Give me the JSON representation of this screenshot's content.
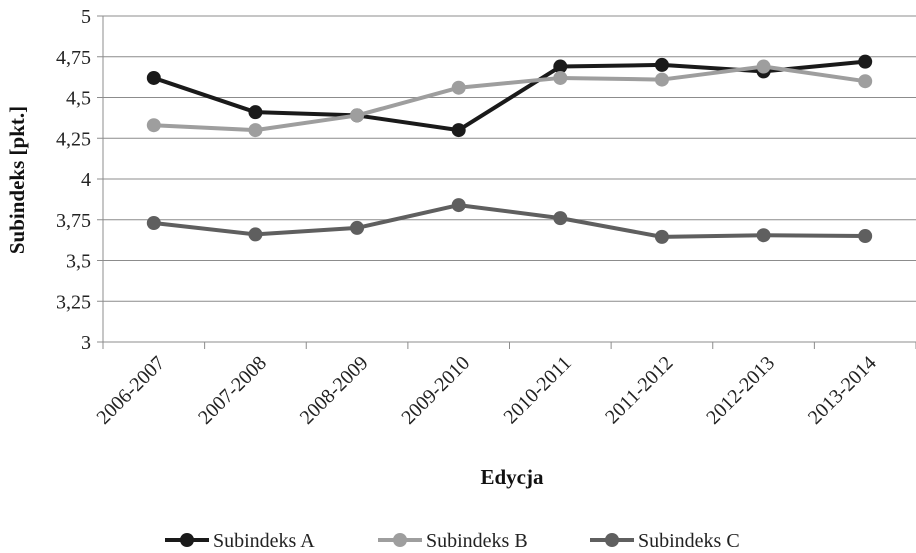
{
  "chart_data": {
    "type": "line",
    "title": "",
    "xlabel": "Edycja",
    "ylabel": "Subindeks [pkt.]",
    "categories": [
      "2006-2007",
      "2007-2008",
      "2008-2009",
      "2009-2010",
      "2010-2011",
      "2011-2012",
      "2012-2013",
      "2013-2014"
    ],
    "ylim": [
      3,
      5
    ],
    "yticks": [
      "3",
      "3,25",
      "3,5",
      "3,75",
      "4",
      "4,25",
      "4,5",
      "4,75",
      "5"
    ],
    "grid": true,
    "legend_position": "bottom",
    "series": [
      {
        "name": "Subindeks A",
        "color": "#1a1a1a",
        "values": [
          4.62,
          4.41,
          4.39,
          4.3,
          4.69,
          4.7,
          4.66,
          4.72
        ]
      },
      {
        "name": "Subindeks B",
        "color": "#9e9e9e",
        "values": [
          4.33,
          4.3,
          4.39,
          4.56,
          4.62,
          4.61,
          4.69,
          4.6
        ]
      },
      {
        "name": "Subindeks C",
        "color": "#5f5f5f",
        "values": [
          3.73,
          3.66,
          3.7,
          3.84,
          3.76,
          3.645,
          3.655,
          3.65
        ]
      }
    ]
  }
}
